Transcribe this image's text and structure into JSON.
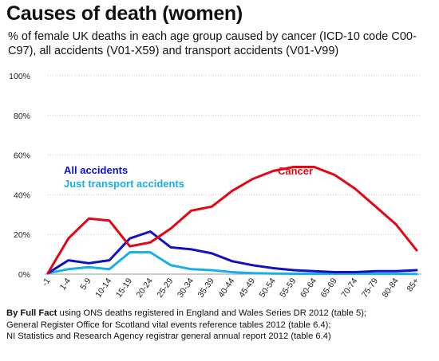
{
  "title": "Causes of death (women)",
  "subtitle": "% of female UK deaths in each age group caused by cancer (ICD-10 code C00-C97), all accidents (V01-X59) and transport accidents (V01-V99)",
  "footer": {
    "bold": "By Full Fact",
    "line1": " using ONS deaths registered in England and Wales Series DR 2012 (table 5);",
    "line2": "General Register Office for Scotland vital events reference tables 2012 (table 6.4);",
    "line3": "NI Statistics and Research Agency registrar general annual report 2012 (table 6.4)"
  },
  "chart_data": {
    "type": "line",
    "categories": [
      "-1",
      "1-4",
      "5-9",
      "10-14",
      "15-19",
      "20-24",
      "25-29",
      "30-34",
      "35-39",
      "40-44",
      "45-49",
      "50-54",
      "55-59",
      "60-64",
      "65-69",
      "70-74",
      "75-79",
      "80-84",
      "85+"
    ],
    "ylim": [
      0,
      100
    ],
    "yticks": [
      "0%",
      "20%",
      "40%",
      "60%",
      "80%",
      "100%"
    ],
    "series": [
      {
        "name": "Cancer",
        "color": "#e30613",
        "values": [
          0.5,
          18,
          28,
          27,
          14,
          16,
          23,
          32,
          34,
          42,
          48,
          52,
          54,
          54,
          50,
          43,
          34,
          25,
          12
        ]
      },
      {
        "name": "All accidents",
        "color": "#1010c8",
        "values": [
          0.5,
          7,
          5.5,
          7,
          18,
          21.5,
          13.5,
          12.5,
          10.5,
          6.5,
          4.5,
          3,
          2,
          1.5,
          1,
          1,
          1.5,
          1.5,
          2
        ]
      },
      {
        "name": "Just transport accidents",
        "color": "#18aee6",
        "values": [
          0.5,
          2.5,
          3.5,
          2.5,
          11,
          11,
          4.5,
          2.5,
          2,
          1,
          0.5,
          0.3,
          0.2,
          0.2,
          0.2,
          0.2,
          0.2,
          0.2,
          0.1
        ]
      }
    ]
  }
}
